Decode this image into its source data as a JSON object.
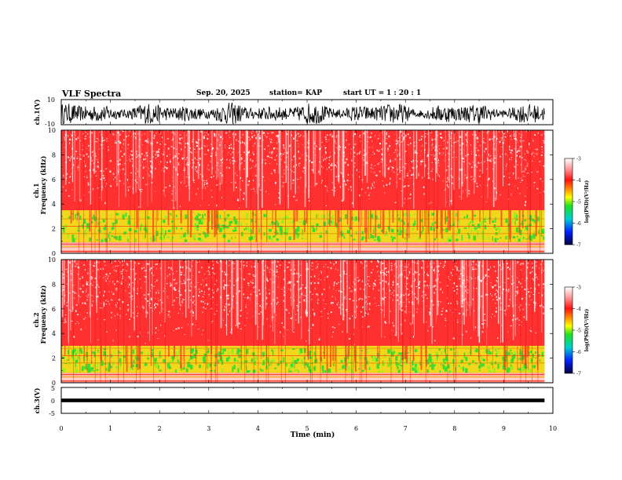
{
  "header": {
    "title": "VLF Spectra",
    "date": "Sep. 20, 2025",
    "station": "station= KAP",
    "start_label": "start  UT  =",
    "start_value": "1 : 20 : 1"
  },
  "colors": {
    "spectrogram_background": "#ff2a2a",
    "noise_speckle": "#ffffff",
    "low_band": "#f6e21a",
    "low_band_core": "#3ddb2e",
    "trace": "#000000"
  },
  "chart_data": [
    {
      "type": "line",
      "name": "ch1-waveform",
      "ylabel": "ch.1(V)",
      "ylim": [
        -10,
        10
      ],
      "yticks": [
        "10",
        "-10"
      ],
      "xlim": [
        0,
        10
      ],
      "description_values": {
        "min": -10,
        "max": 10
      }
    },
    {
      "type": "heatmap",
      "name": "ch1-spectrogram",
      "ylabel_top": "ch.1",
      "ylabel": "Frequency  (kHz)",
      "ylim": [
        0,
        10
      ],
      "yticks": [
        "0",
        "2",
        "4",
        "6",
        "8",
        "10"
      ],
      "xlim": [
        0,
        9.83
      ],
      "bands": [
        {
          "from_khz": 0,
          "to_khz": 0.9,
          "level": "mixed"
        },
        {
          "from_khz": 0.9,
          "to_khz": 3.5,
          "level": "low"
        },
        {
          "from_khz": 3.5,
          "to_khz": 10,
          "level": "high"
        }
      ],
      "colorbar": {
        "label": "log(PSD)(V²/Hz)",
        "ticks": [
          "-3",
          "-4",
          "-5",
          "-6",
          "-7"
        ],
        "range": [
          -7,
          -3
        ]
      }
    },
    {
      "type": "heatmap",
      "name": "ch2-spectrogram",
      "ylabel_top": "ch.2",
      "ylabel": "Frequency  (kHz)",
      "ylim": [
        0,
        10
      ],
      "yticks": [
        "0",
        "2",
        "4",
        "6",
        "8",
        "10"
      ],
      "xlim": [
        0,
        9.83
      ],
      "bands": [
        {
          "from_khz": 0,
          "to_khz": 0.8,
          "level": "mixed"
        },
        {
          "from_khz": 0.8,
          "to_khz": 3.0,
          "level": "low"
        },
        {
          "from_khz": 3.0,
          "to_khz": 10,
          "level": "high"
        }
      ],
      "colorbar": {
        "label": "log(PSD)(V²/Hz)",
        "ticks": [
          "-3",
          "-4",
          "-5",
          "-6",
          "-7"
        ],
        "range": [
          -7,
          -3
        ]
      }
    },
    {
      "type": "line",
      "name": "ch3-waveform",
      "ylabel": "ch.3(V)",
      "ylim": [
        -5,
        5
      ],
      "yticks": [
        "5",
        "0",
        "-5"
      ],
      "level": {
        "min": -0.4,
        "max": 0.4
      },
      "xlim": [
        0,
        10
      ]
    }
  ],
  "x_axis": {
    "label": "Time  (min)",
    "ticks": [
      "0",
      "1",
      "2",
      "3",
      "4",
      "5",
      "6",
      "7",
      "8",
      "9",
      "10"
    ],
    "range": [
      0,
      10
    ]
  }
}
